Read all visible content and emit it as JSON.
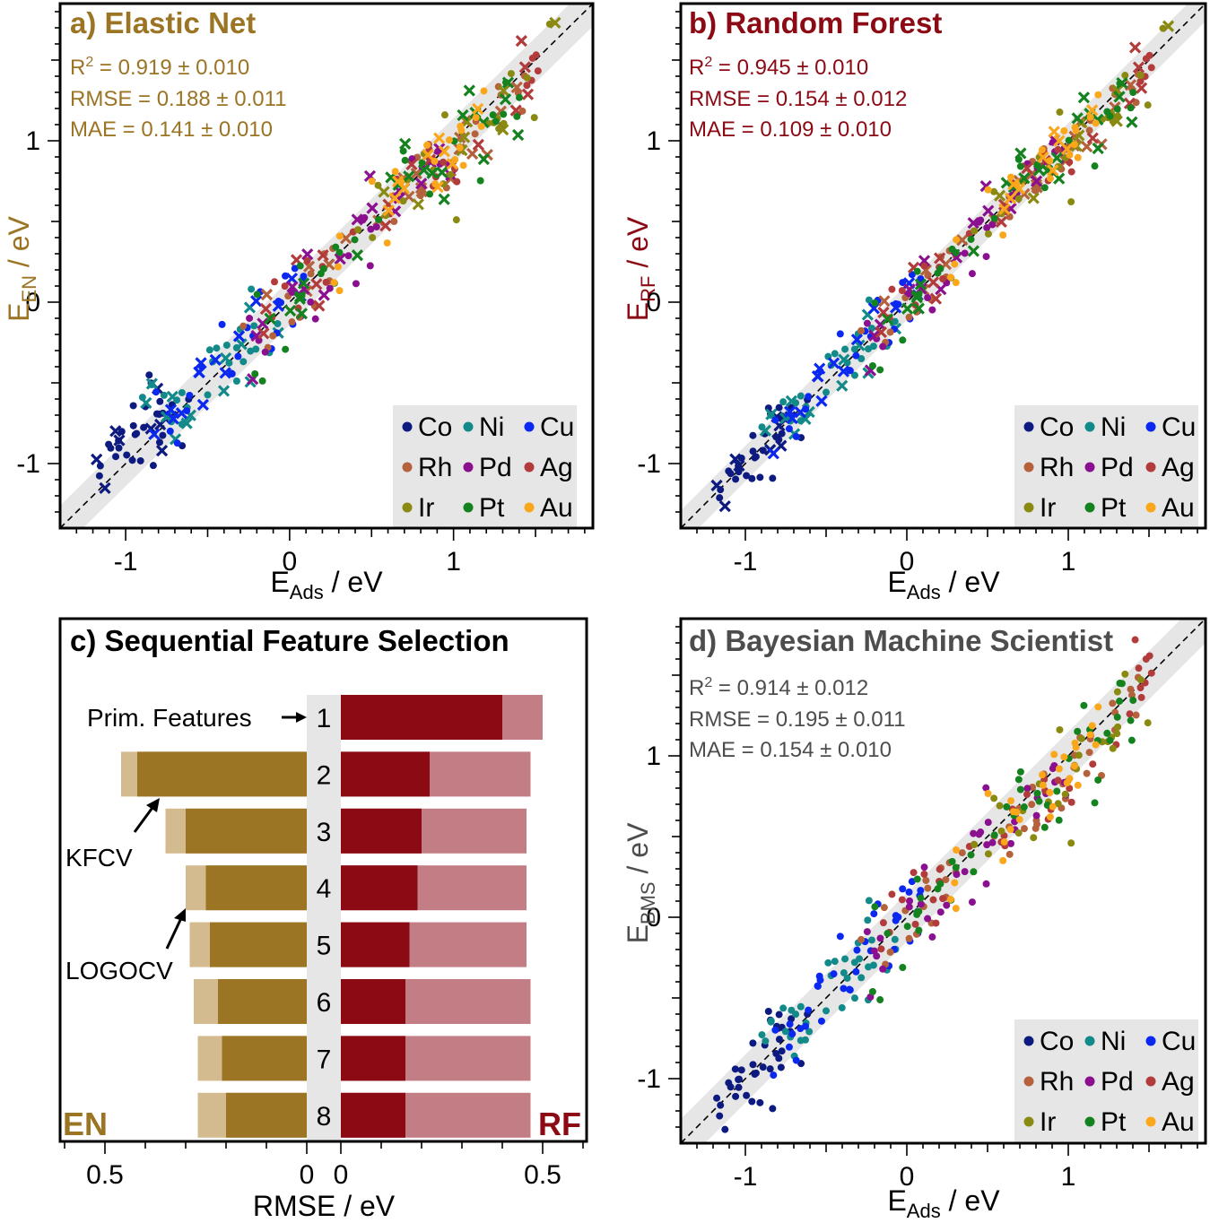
{
  "colors": {
    "Co": "#0d1a80",
    "Ni": "#138a8a",
    "Cu": "#0a28f0",
    "Rh": "#b5623c",
    "Pd": "#8a108f",
    "Ag": "#b23b3b",
    "Ir": "#8a8a12",
    "Pt": "#14821e",
    "Au": "#fba71b",
    "en_brown": "#9b7424",
    "en_light": "#d4bb8f",
    "rf_dark": "#8b0a14",
    "rf_light": "#c27d85",
    "bms_grey": "#4d4d4d",
    "band": "#e6e6e6"
  },
  "legend": {
    "labels": [
      "Co",
      "Ni",
      "Cu",
      "Rh",
      "Pd",
      "Ag",
      "Ir",
      "Pt",
      "Au"
    ]
  },
  "panels": {
    "a": {
      "title": "a) Elastic Net",
      "ylabel_main": "E",
      "ylabel_sub": "EN",
      "ylabel_unit": " / eV",
      "stats": {
        "r2_label": "R",
        "r2_sup": "2",
        "r2_value": " = 0.919 ± 0.010",
        "rmse": "RMSE = 0.188 ± 0.011",
        "mae": "MAE = 0.141 ± 0.010"
      }
    },
    "b": {
      "title": "b) Random Forest",
      "ylabel_main": "E",
      "ylabel_sub": "RF",
      "ylabel_unit": " / eV",
      "stats": {
        "r2_label": "R",
        "r2_sup": "2",
        "r2_value": " = 0.945 ± 0.010",
        "rmse": "RMSE = 0.154 ± 0.012",
        "mae": "MAE = 0.109 ± 0.010"
      }
    },
    "c": {
      "title": "c) Sequential Feature Selection",
      "xlabel": "RMSE / eV",
      "en_label": "EN",
      "rf_label": "RF",
      "annot_prim": "Prim. Features",
      "annot_kfcv": "KFCV",
      "annot_logocv": "LOGOCV"
    },
    "d": {
      "title": "d) Bayesian Machine Scientist",
      "ylabel_main": "E",
      "ylabel_sub": "BMS",
      "ylabel_unit": " / eV",
      "stats": {
        "r2_label": "R",
        "r2_sup": "2",
        "r2_value": " = 0.914 ± 0.012",
        "rmse": "RMSE = 0.195 ± 0.011",
        "mae": "MAE = 0.154 ± 0.010"
      }
    }
  },
  "xlabel_main": "E",
  "xlabel_sub": "Ads",
  "xlabel_unit": " / eV",
  "chart_data": [
    {
      "type": "scatter",
      "panel": "a",
      "title": "a) Elastic Net",
      "xlabel": "E_Ads / eV",
      "ylabel": "E_EN / eV",
      "xlim": [
        -1.4,
        1.85
      ],
      "ylim": [
        -1.4,
        1.85
      ],
      "xticks": [
        -1,
        0,
        1
      ],
      "yticks": [
        -1,
        0,
        1
      ],
      "parity_line": true,
      "band_halfwidth": 0.188
    },
    {
      "type": "scatter",
      "panel": "b",
      "title": "b) Random Forest",
      "xlabel": "E_Ads / eV",
      "ylabel": "E_RF / eV",
      "xlim": [
        -1.4,
        1.85
      ],
      "ylim": [
        -1.4,
        1.85
      ],
      "xticks": [
        -1,
        0,
        1
      ],
      "yticks": [
        -1,
        0,
        1
      ],
      "parity_line": true,
      "band_halfwidth": 0.154
    },
    {
      "type": "bar",
      "panel": "c",
      "title": "c) Sequential Feature Selection",
      "xlabel": "RMSE / eV",
      "categories": [
        "1",
        "2",
        "3",
        "4",
        "5",
        "6",
        "7",
        "8"
      ],
      "xticks": [
        0.5,
        0,
        0.5
      ],
      "series": [
        {
          "name": "EN KFCV",
          "values": [
            null,
            0.46,
            0.35,
            0.3,
            0.29,
            0.28,
            0.27,
            0.27
          ]
        },
        {
          "name": "EN LOGOCV",
          "values": [
            null,
            0.42,
            0.3,
            0.25,
            0.24,
            0.22,
            0.21,
            0.2
          ]
        },
        {
          "name": "RF LOGOCV",
          "values": [
            0.4,
            0.22,
            0.2,
            0.19,
            0.17,
            0.16,
            0.16,
            0.16
          ]
        },
        {
          "name": "RF KFCV",
          "values": [
            0.5,
            0.47,
            0.46,
            0.46,
            0.46,
            0.47,
            0.47,
            0.47
          ]
        }
      ]
    },
    {
      "type": "scatter",
      "panel": "d",
      "title": "d) Bayesian Machine Scientist",
      "xlabel": "E_Ads / eV",
      "ylabel": "E_BMS / eV",
      "xlim": [
        -1.4,
        1.85
      ],
      "ylim": [
        -1.4,
        1.85
      ],
      "xticks": [
        -1,
        0,
        1
      ],
      "yticks": [
        -1,
        0,
        1
      ],
      "parity_line": true,
      "band_halfwidth": 0.195
    }
  ]
}
